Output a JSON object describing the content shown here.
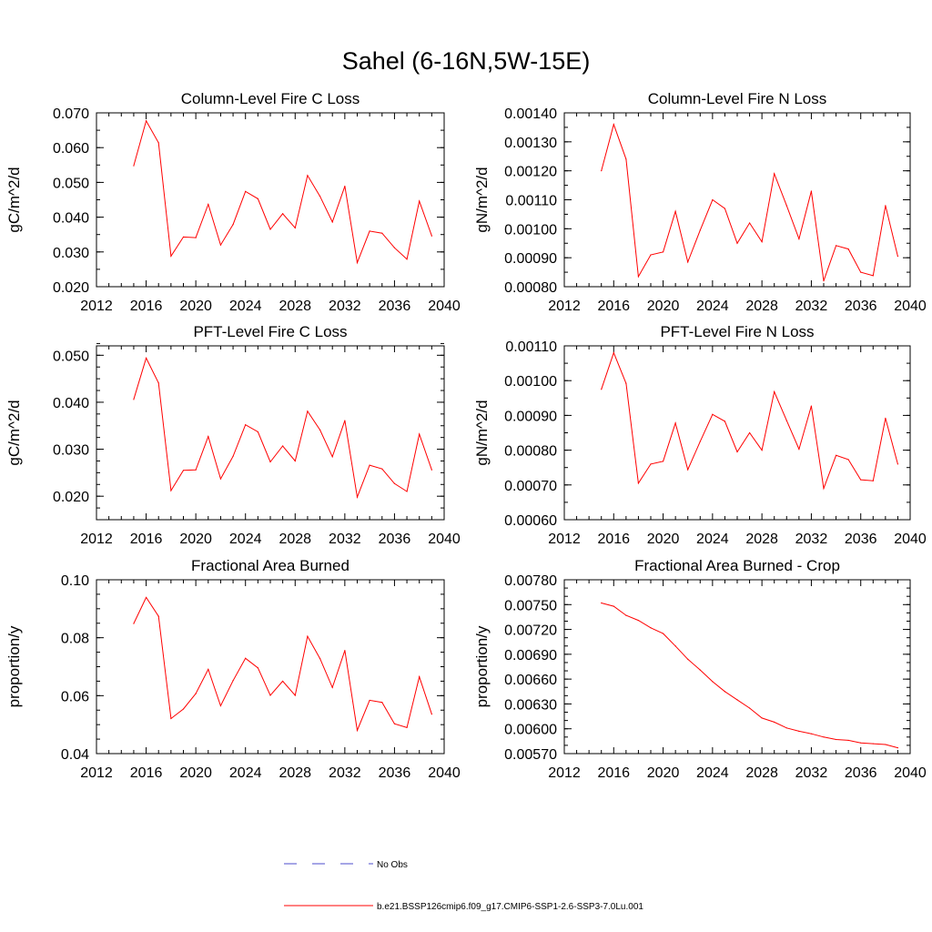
{
  "title": "Sahel (6-16N,5W-15E)",
  "colors": {
    "series": "#ff0000",
    "obs": "#4d4dcc",
    "axis": "#000000"
  },
  "legend": [
    {
      "label": "No Obs",
      "style": "dashed",
      "color": "#4d4dcc"
    },
    {
      "label": "b.e21.BSSP126cmip6.f09_g17.CMIP6-SSP1-2.6-SSP3-7.0Lu.001",
      "style": "solid",
      "color": "#ff0000"
    }
  ],
  "chart_data": [
    {
      "type": "line",
      "title": "Column-Level Fire C Loss",
      "ylabel": "gC/m^2/d",
      "xlim": [
        2012,
        2040
      ],
      "xticks": [
        "2012",
        "2016",
        "2020",
        "2024",
        "2028",
        "2032",
        "2036",
        "2040"
      ],
      "ylim": [
        0.02,
        0.07
      ],
      "yticks": [
        "0.020",
        "0.030",
        "0.040",
        "0.050",
        "0.060",
        "0.070"
      ],
      "yminor": 0.005,
      "x": [
        2015,
        2016,
        2017,
        2018,
        2019,
        2020,
        2021,
        2022,
        2023,
        2024,
        2025,
        2026,
        2027,
        2028,
        2029,
        2030,
        2031,
        2032,
        2033,
        2034,
        2035,
        2036,
        2037,
        2038,
        2039
      ],
      "series": [
        {
          "values": [
            0.0548,
            0.0677,
            0.0614,
            0.0288,
            0.0343,
            0.0341,
            0.0437,
            0.032,
            0.0379,
            0.0474,
            0.0453,
            0.0365,
            0.041,
            0.0369,
            0.052,
            0.046,
            0.0386,
            0.0489,
            0.0269,
            0.036,
            0.0354,
            0.0312,
            0.0279,
            0.0446,
            0.0346
          ]
        }
      ]
    },
    {
      "type": "line",
      "title": "Column-Level Fire N Loss",
      "ylabel": "gN/m^2/d",
      "xlim": [
        2012,
        2040
      ],
      "xticks": [
        "2012",
        "2016",
        "2020",
        "2024",
        "2028",
        "2032",
        "2036",
        "2040"
      ],
      "ylim": [
        0.0008,
        0.0014
      ],
      "yticks": [
        "0.00080",
        "0.00090",
        "0.00100",
        "0.00110",
        "0.00120",
        "0.00130",
        "0.00140"
      ],
      "yminor": 5e-05,
      "x": [
        2015,
        2016,
        2017,
        2018,
        2019,
        2020,
        2021,
        2022,
        2023,
        2024,
        2025,
        2026,
        2027,
        2028,
        2029,
        2030,
        2031,
        2032,
        2033,
        2034,
        2035,
        2036,
        2037,
        2038,
        2039
      ],
      "series": [
        {
          "values": [
            0.0012,
            0.00136,
            0.00124,
            0.000835,
            0.00091,
            0.00092,
            0.00106,
            0.000885,
            0.000995,
            0.0011,
            0.00107,
            0.00095,
            0.00102,
            0.000955,
            0.00119,
            0.00108,
            0.000965,
            0.00113,
            0.00082,
            0.000942,
            0.00093,
            0.00085,
            0.000838,
            0.00108,
            0.000905
          ]
        }
      ]
    },
    {
      "type": "line",
      "title": "PFT-Level Fire C Loss",
      "ylabel": "gC/m^2/d",
      "xlim": [
        2012,
        2040
      ],
      "xticks": [
        "2012",
        "2016",
        "2020",
        "2024",
        "2028",
        "2032",
        "2036",
        "2040"
      ],
      "ylim": [
        0.015,
        0.052
      ],
      "yticks": [
        "0.020",
        "0.030",
        "0.040",
        "0.050"
      ],
      "ytickvals": [
        0.02,
        0.03,
        0.04,
        0.05
      ],
      "yminor": 0.0025,
      "x": [
        2015,
        2016,
        2017,
        2018,
        2019,
        2020,
        2021,
        2022,
        2023,
        2024,
        2025,
        2026,
        2027,
        2028,
        2029,
        2030,
        2031,
        2032,
        2033,
        2034,
        2035,
        2036,
        2037,
        2038,
        2039
      ],
      "series": [
        {
          "values": [
            0.0406,
            0.0494,
            0.0441,
            0.0212,
            0.0255,
            0.0256,
            0.0327,
            0.0237,
            0.0285,
            0.0352,
            0.0337,
            0.0273,
            0.0307,
            0.0275,
            0.0381,
            0.0341,
            0.0284,
            0.0361,
            0.0198,
            0.0266,
            0.0258,
            0.0227,
            0.021,
            0.0332,
            0.0256
          ]
        }
      ]
    },
    {
      "type": "line",
      "title": "PFT-Level Fire N Loss",
      "ylabel": "gN/m^2/d",
      "xlim": [
        2012,
        2040
      ],
      "xticks": [
        "2012",
        "2016",
        "2020",
        "2024",
        "2028",
        "2032",
        "2036",
        "2040"
      ],
      "ylim": [
        0.0006,
        0.0011
      ],
      "yticks": [
        "0.00060",
        "0.00070",
        "0.00080",
        "0.00090",
        "0.00100",
        "0.00110"
      ],
      "yminor": 5e-05,
      "x": [
        2015,
        2016,
        2017,
        2018,
        2019,
        2020,
        2021,
        2022,
        2023,
        2024,
        2025,
        2026,
        2027,
        2028,
        2029,
        2030,
        2031,
        2032,
        2033,
        2034,
        2035,
        2036,
        2037,
        2038,
        2039
      ],
      "series": [
        {
          "values": [
            0.000975,
            0.00108,
            0.000992,
            0.000705,
            0.00076,
            0.000768,
            0.000878,
            0.000744,
            0.000825,
            0.000903,
            0.000883,
            0.000795,
            0.00085,
            0.0008,
            0.000968,
            0.000885,
            0.000803,
            0.000927,
            0.00069,
            0.000785,
            0.000773,
            0.000715,
            0.000712,
            0.000892,
            0.00076
          ]
        }
      ]
    },
    {
      "type": "line",
      "title": "Fractional Area Burned",
      "ylabel": "proportion/y",
      "xlim": [
        2012,
        2040
      ],
      "xticks": [
        "2012",
        "2016",
        "2020",
        "2024",
        "2028",
        "2032",
        "2036",
        "2040"
      ],
      "ylim": [
        0.04,
        0.1
      ],
      "yticks": [
        "0.04",
        "0.06",
        "0.08",
        "0.10"
      ],
      "ytickvals": [
        0.04,
        0.06,
        0.08,
        0.1
      ],
      "yminor": 0.005,
      "x": [
        2015,
        2016,
        2017,
        2018,
        2019,
        2020,
        2021,
        2022,
        2023,
        2024,
        2025,
        2026,
        2027,
        2028,
        2029,
        2030,
        2031,
        2032,
        2033,
        2034,
        2035,
        2036,
        2037,
        2038,
        2039
      ],
      "series": [
        {
          "values": [
            0.0849,
            0.0939,
            0.0874,
            0.0521,
            0.0554,
            0.0607,
            0.0691,
            0.0565,
            0.0652,
            0.0729,
            0.0696,
            0.0601,
            0.065,
            0.0601,
            0.0805,
            0.0728,
            0.0628,
            0.0756,
            0.048,
            0.0584,
            0.0577,
            0.0503,
            0.049,
            0.0665,
            0.0536
          ]
        }
      ]
    },
    {
      "type": "line",
      "title": "Fractional Area Burned - Crop",
      "ylabel": "proportion/y",
      "xlim": [
        2012,
        2040
      ],
      "xticks": [
        "2012",
        "2016",
        "2020",
        "2024",
        "2028",
        "2032",
        "2036",
        "2040"
      ],
      "ylim": [
        0.0057,
        0.0078
      ],
      "yticks": [
        "0.00570",
        "0.00600",
        "0.00630",
        "0.00660",
        "0.00690",
        "0.00720",
        "0.00750",
        "0.00780"
      ],
      "yminor": 0.0001,
      "x": [
        2015,
        2016,
        2017,
        2018,
        2019,
        2020,
        2021,
        2022,
        2023,
        2024,
        2025,
        2026,
        2027,
        2028,
        2029,
        2030,
        2031,
        2032,
        2033,
        2034,
        2035,
        2036,
        2037,
        2038,
        2039
      ],
      "series": [
        {
          "values": [
            0.00752,
            0.00748,
            0.00737,
            0.00731,
            0.00722,
            0.00715,
            0.007,
            0.00684,
            0.00671,
            0.00657,
            0.00645,
            0.00635,
            0.00625,
            0.00613,
            0.00608,
            0.00601,
            0.00597,
            0.00594,
            0.0059,
            0.00587,
            0.00586,
            0.00583,
            0.00582,
            0.00581,
            0.00577
          ]
        }
      ]
    }
  ]
}
